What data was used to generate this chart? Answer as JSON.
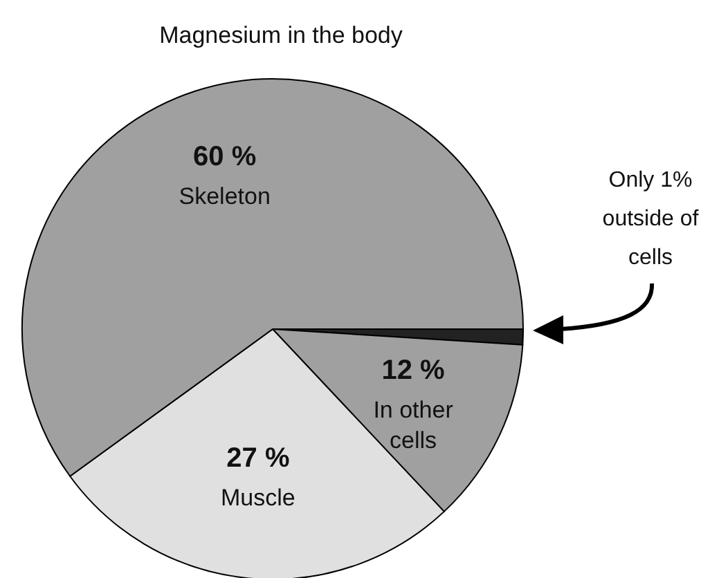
{
  "chart_data": {
    "type": "pie",
    "title": "Magnesium in the body",
    "categories": [
      null,
      "In other cells",
      "Muscle",
      "Skeleton"
    ],
    "values": [
      1,
      12,
      27,
      60
    ],
    "colors": [
      "#222222",
      "#a0a0a0",
      "#e0e0e0",
      "#a0a0a0"
    ],
    "value_labels": [
      null,
      "12 %",
      "27 %",
      "60 %"
    ],
    "annotations": [
      "Only 1% outside of cells"
    ]
  }
}
